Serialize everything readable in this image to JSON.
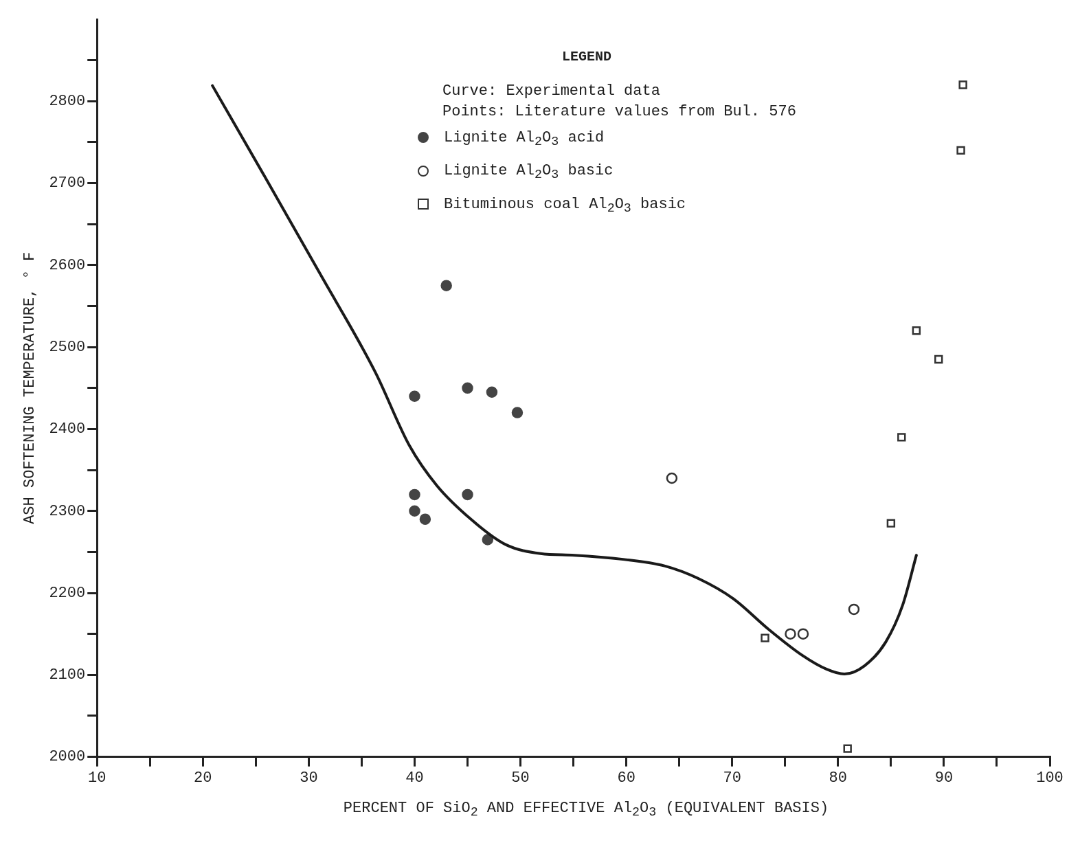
{
  "chart_data": {
    "type": "scatter",
    "xlabel": "PERCENT OF SiO$_{2}$ AND EFFECTIVE Al$_{2}$O$_{3}$ (EQUIVALENT BASIS)",
    "ylabel": "ASH SOFTENING TEMPERATURE, ° F",
    "legend_title": "LEGEND",
    "legend": "top",
    "annotations": [
      "Points: Literature values from Bul. 576"
    ],
    "xlim": [
      10,
      100
    ],
    "xticks": [
      10,
      {
        "value": 15,
        "label": null
      },
      20,
      {
        "value": 25,
        "label": null
      },
      30,
      {
        "value": 35,
        "label": null
      },
      40,
      {
        "value": 45,
        "label": null
      },
      50,
      {
        "value": 55,
        "label": null
      },
      60,
      {
        "value": 65,
        "label": null
      },
      70,
      {
        "value": 75,
        "label": null
      },
      80,
      {
        "value": 85,
        "label": null
      },
      90,
      {
        "value": 95,
        "label": null
      },
      100
    ],
    "ylim": [
      2000,
      2900
    ],
    "yticks": [
      2000,
      {
        "value": 2050,
        "label": null
      },
      2100,
      {
        "value": 2150,
        "label": null
      },
      2200,
      {
        "value": 2250,
        "label": null
      },
      2300,
      {
        "value": 2350,
        "label": null
      },
      2400,
      {
        "value": 2450,
        "label": null
      },
      2500,
      {
        "value": 2550,
        "label": null
      },
      2600,
      {
        "value": 2650,
        "label": null
      },
      2700,
      {
        "value": 2750,
        "label": null
      },
      2800,
      {
        "value": 2850,
        "label": null
      }
    ],
    "grid": false,
    "series": [
      {
        "name": "Curve: Experimental data",
        "type": "line",
        "color": "#1a1a1a",
        "marker": "none",
        "line_style": "solid",
        "x": [
          20.9,
          25.8,
          31.0,
          36.3,
          39.5,
          42.1,
          45.4,
          48.6,
          51.9,
          55.1,
          59.7,
          63.6,
          66.9,
          70.1,
          73.4,
          76.6,
          78.9,
          80.6,
          82.5,
          84.5,
          86.1,
          87.4
        ],
        "values": [
          2819,
          2709,
          2591,
          2469,
          2380,
          2331,
          2289,
          2259,
          2248,
          2246,
          2241,
          2233,
          2217,
          2193,
          2156,
          2124,
          2107,
          2101,
          2111,
          2140,
          2185,
          2246
        ]
      },
      {
        "name": "Lignite Al$_{2}$O$_{3}$ acid",
        "type": "scatter",
        "color": "#444444",
        "marker": "circle",
        "x": [
          40,
          40,
          40,
          41,
          43,
          45,
          45,
          46.9,
          47.3,
          49.7
        ],
        "values": [
          2440,
          2320,
          2300,
          2290,
          2575,
          2450,
          2320,
          2265,
          2445,
          2420
        ]
      },
      {
        "name": "Lignite Al$_{2}$O$_{3}$ basic",
        "type": "scatter",
        "color": "#333333",
        "marker": "circle",
        "x": [
          64.3,
          75.5,
          76.7,
          81.5
        ],
        "values": [
          2340,
          2150,
          2150,
          2180
        ]
      },
      {
        "name": "Bituminous coal Al$_{2}$O$_{3}$ basic",
        "type": "scatter",
        "color": "#333333",
        "marker": "square",
        "x": [
          73.1,
          80.9,
          85.0,
          86.0,
          87.4,
          89.5,
          91.6,
          91.8
        ],
        "values": [
          2145,
          2010,
          2285,
          2390,
          2520,
          2485,
          2740,
          2820
        ]
      }
    ]
  }
}
